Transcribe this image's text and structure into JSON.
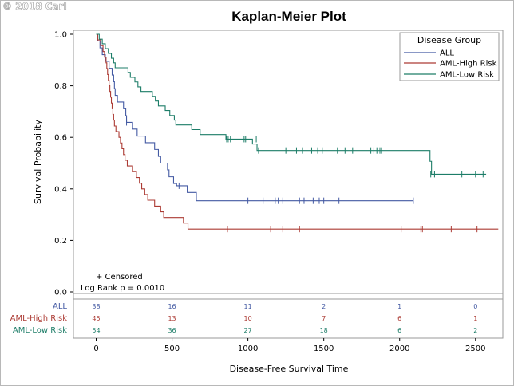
{
  "watermark": "© 2018 Carl",
  "chart_data": {
    "type": "line",
    "subtype": "kaplan-meier-step",
    "title": "Kaplan-Meier Plot",
    "xlabel": "Disease-Free Survival Time",
    "ylabel": "Survival Probability",
    "xlim": [
      -150,
      2680
    ],
    "ylim": [
      0,
      1.0
    ],
    "xticks": [
      0,
      500,
      1000,
      1500,
      2000,
      2500
    ],
    "yticks": [
      0.0,
      0.2,
      0.4,
      0.6,
      0.8,
      1.0
    ],
    "ytick_labels": [
      "0.0",
      "0.2",
      "0.4",
      "0.6",
      "0.8",
      "1.0"
    ],
    "legend": {
      "title": "Disease Group",
      "position": "top-right",
      "entries": [
        "ALL",
        "AML-High Risk",
        "AML-Low Risk"
      ]
    },
    "annotations": {
      "censored_label": "+ Censored",
      "log_rank": "Log Rank p = 0.0010"
    },
    "series": [
      {
        "name": "ALL",
        "color": "#445aa3",
        "steps": [
          [
            0,
            1.0
          ],
          [
            10,
            0.974
          ],
          [
            25,
            0.947
          ],
          [
            40,
            0.921
          ],
          [
            60,
            0.895
          ],
          [
            85,
            0.868
          ],
          [
            105,
            0.842
          ],
          [
            115,
            0.816
          ],
          [
            120,
            0.789
          ],
          [
            125,
            0.763
          ],
          [
            140,
            0.737
          ],
          [
            180,
            0.711
          ],
          [
            195,
            0.684
          ],
          [
            200,
            0.658
          ],
          [
            240,
            0.632
          ],
          [
            270,
            0.605
          ],
          [
            325,
            0.579
          ],
          [
            385,
            0.553
          ],
          [
            410,
            0.526
          ],
          [
            425,
            0.5
          ],
          [
            470,
            0.474
          ],
          [
            480,
            0.447
          ],
          [
            510,
            0.421
          ],
          [
            530,
            0.412
          ],
          [
            600,
            0.386
          ],
          [
            660,
            0.354
          ],
          [
            2090,
            0.354
          ]
        ],
        "censored": [
          [
            200,
            0.658
          ],
          [
            546,
            0.412
          ],
          [
            1000,
            0.354
          ],
          [
            1100,
            0.354
          ],
          [
            1180,
            0.354
          ],
          [
            1200,
            0.354
          ],
          [
            1230,
            0.354
          ],
          [
            1340,
            0.354
          ],
          [
            1370,
            0.354
          ],
          [
            1430,
            0.354
          ],
          [
            1470,
            0.354
          ],
          [
            1500,
            0.354
          ],
          [
            1600,
            0.354
          ],
          [
            2090,
            0.354
          ]
        ]
      },
      {
        "name": "AML-High Risk",
        "color": "#ac3b34",
        "steps": [
          [
            0,
            1.0
          ],
          [
            10,
            0.978
          ],
          [
            30,
            0.956
          ],
          [
            45,
            0.933
          ],
          [
            55,
            0.911
          ],
          [
            65,
            0.889
          ],
          [
            70,
            0.867
          ],
          [
            75,
            0.844
          ],
          [
            80,
            0.822
          ],
          [
            85,
            0.8
          ],
          [
            90,
            0.778
          ],
          [
            95,
            0.756
          ],
          [
            100,
            0.733
          ],
          [
            105,
            0.711
          ],
          [
            110,
            0.689
          ],
          [
            115,
            0.667
          ],
          [
            120,
            0.644
          ],
          [
            130,
            0.622
          ],
          [
            150,
            0.6
          ],
          [
            160,
            0.578
          ],
          [
            170,
            0.556
          ],
          [
            180,
            0.533
          ],
          [
            190,
            0.511
          ],
          [
            205,
            0.489
          ],
          [
            240,
            0.467
          ],
          [
            265,
            0.444
          ],
          [
            285,
            0.422
          ],
          [
            300,
            0.4
          ],
          [
            320,
            0.378
          ],
          [
            340,
            0.356
          ],
          [
            385,
            0.333
          ],
          [
            425,
            0.311
          ],
          [
            445,
            0.289
          ],
          [
            555,
            0.289
          ],
          [
            575,
            0.267
          ],
          [
            605,
            0.244
          ],
          [
            675,
            0.244
          ],
          [
            2650,
            0.244
          ]
        ],
        "censored": [
          [
            865,
            0.244
          ],
          [
            1150,
            0.244
          ],
          [
            1230,
            0.244
          ],
          [
            1340,
            0.244
          ],
          [
            1620,
            0.244
          ],
          [
            2010,
            0.244
          ],
          [
            2140,
            0.244
          ],
          [
            2150,
            0.244
          ],
          [
            2340,
            0.244
          ],
          [
            2510,
            0.244
          ]
        ]
      },
      {
        "name": "AML-Low Risk",
        "color": "#1d7d68",
        "steps": [
          [
            0,
            1.0
          ],
          [
            20,
            0.981
          ],
          [
            40,
            0.963
          ],
          [
            60,
            0.944
          ],
          [
            80,
            0.926
          ],
          [
            100,
            0.907
          ],
          [
            115,
            0.889
          ],
          [
            125,
            0.87
          ],
          [
            210,
            0.852
          ],
          [
            225,
            0.833
          ],
          [
            255,
            0.815
          ],
          [
            275,
            0.796
          ],
          [
            295,
            0.778
          ],
          [
            370,
            0.759
          ],
          [
            390,
            0.741
          ],
          [
            410,
            0.722
          ],
          [
            455,
            0.704
          ],
          [
            485,
            0.685
          ],
          [
            515,
            0.667
          ],
          [
            525,
            0.648
          ],
          [
            630,
            0.63
          ],
          [
            685,
            0.611
          ],
          [
            855,
            0.593
          ],
          [
            1030,
            0.574
          ],
          [
            1060,
            0.549
          ],
          [
            2190,
            0.549
          ],
          [
            2200,
            0.507
          ],
          [
            2210,
            0.457
          ],
          [
            2570,
            0.457
          ]
        ],
        "censored": [
          [
            860,
            0.593
          ],
          [
            870,
            0.593
          ],
          [
            885,
            0.593
          ],
          [
            975,
            0.593
          ],
          [
            985,
            0.593
          ],
          [
            1055,
            0.593
          ],
          [
            1070,
            0.549
          ],
          [
            1250,
            0.549
          ],
          [
            1320,
            0.549
          ],
          [
            1360,
            0.549
          ],
          [
            1420,
            0.549
          ],
          [
            1460,
            0.549
          ],
          [
            1490,
            0.549
          ],
          [
            1590,
            0.549
          ],
          [
            1640,
            0.549
          ],
          [
            1690,
            0.549
          ],
          [
            1810,
            0.549
          ],
          [
            1830,
            0.549
          ],
          [
            1850,
            0.549
          ],
          [
            1870,
            0.549
          ],
          [
            1880,
            0.549
          ],
          [
            2205,
            0.457
          ],
          [
            2220,
            0.457
          ],
          [
            2230,
            0.457
          ],
          [
            2410,
            0.457
          ],
          [
            2500,
            0.457
          ],
          [
            2550,
            0.457
          ]
        ]
      }
    ],
    "at_risk": {
      "times": [
        0,
        500,
        1000,
        1500,
        2000,
        2500
      ],
      "groups": [
        {
          "name": "ALL",
          "color": "#445aa3",
          "values": [
            "38",
            "16",
            "11",
            "2",
            "1",
            "0"
          ]
        },
        {
          "name": "AML-High Risk",
          "color": "#ac3b34",
          "values": [
            "45",
            "13",
            "10",
            "7",
            "6",
            "1"
          ]
        },
        {
          "name": "AML-Low Risk",
          "color": "#1d7d68",
          "values": [
            "54",
            "36",
            "27",
            "18",
            "6",
            "2"
          ]
        }
      ]
    }
  }
}
